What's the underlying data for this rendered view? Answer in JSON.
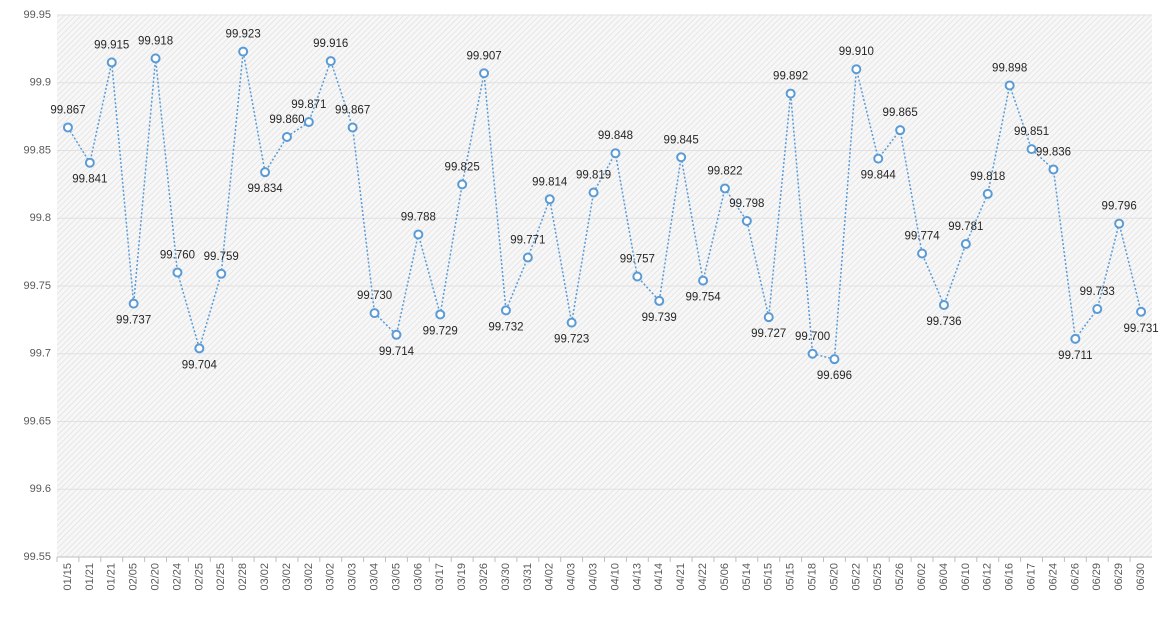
{
  "chart_data": {
    "type": "line",
    "categories": [
      "01/15",
      "01/21",
      "01/21",
      "02/05",
      "02/20",
      "02/24",
      "02/25",
      "02/25",
      "02/28",
      "03/02",
      "03/02",
      "03/02",
      "03/02",
      "03/03",
      "03/04",
      "03/05",
      "03/06",
      "03/17",
      "03/19",
      "03/26",
      "03/30",
      "03/31",
      "04/02",
      "04/03",
      "04/03",
      "04/10",
      "04/13",
      "04/14",
      "04/21",
      "04/22",
      "05/06",
      "05/14",
      "05/15",
      "05/15",
      "05/18",
      "05/20",
      "05/22",
      "05/25",
      "05/26",
      "06/02",
      "06/04",
      "06/10",
      "06/12",
      "06/16",
      "06/17",
      "06/24",
      "06/26",
      "06/29",
      "06/29",
      "06/30"
    ],
    "series": [
      {
        "color": "#5b9bd5",
        "values": [
          99.867,
          99.841,
          99.915,
          99.737,
          99.918,
          99.76,
          99.704,
          99.759,
          99.923,
          99.834,
          99.86,
          99.871,
          99.916,
          99.867,
          99.73,
          99.714,
          99.788,
          99.729,
          99.825,
          99.907,
          99.732,
          99.771,
          99.814,
          99.723,
          99.819,
          99.848,
          99.757,
          99.739,
          99.845,
          99.754,
          99.822,
          99.798,
          99.727,
          99.892,
          99.7,
          99.696,
          99.91,
          99.844,
          99.865,
          99.774,
          99.736,
          99.781,
          99.818,
          99.898,
          99.851,
          99.836,
          99.711,
          99.733,
          99.796,
          99.731
        ],
        "value_labels": [
          "99.867",
          "99.841",
          "99.915",
          "99.737",
          "99.918",
          "99.760",
          "99.704",
          "99.759",
          "99.923",
          "99.834",
          "99.860",
          "99.871",
          "99.916",
          "99.867",
          "99.730",
          "99.714",
          "99.788",
          "99.729",
          "99.825",
          "99.907",
          "99.732",
          "99.771",
          "99.814",
          "99.723",
          "99.819",
          "99.848",
          "99.757",
          "99.739",
          "99.845",
          "99.754",
          "99.822",
          "99.798",
          "99.727",
          "99.892",
          "99.700",
          "99.696",
          "99.910",
          "99.844",
          "99.865",
          "99.774",
          "99.736",
          "99.781",
          "99.818",
          "99.898",
          "99.851",
          "99.836",
          "99.711",
          "99.733",
          "99.796",
          "99.731"
        ]
      }
    ],
    "ylim": [
      99.55,
      99.95
    ],
    "yticks": [
      99.55,
      99.6,
      99.65,
      99.7,
      99.75,
      99.8,
      99.85,
      99.9,
      99.95
    ],
    "grid": true
  }
}
